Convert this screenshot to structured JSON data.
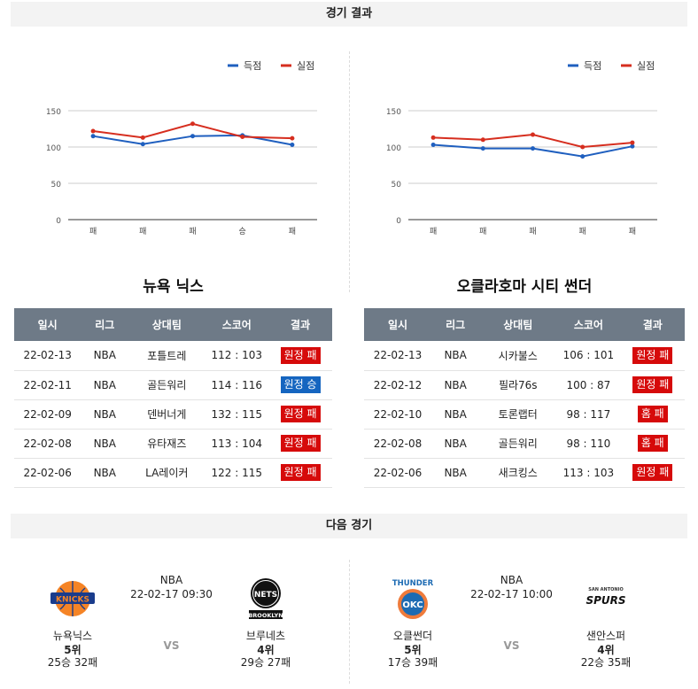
{
  "sections": {
    "results": "경기 결과",
    "next": "다음 경기"
  },
  "legend": {
    "scored": "득점",
    "conceded": "실점"
  },
  "colors": {
    "scored": "#1f5fbf",
    "conceded": "#d62e1f",
    "header_bg": "#6e7a87",
    "loss": "#d60a0a",
    "win": "#1565c0"
  },
  "chart_data": [
    {
      "type": "line",
      "categories": [
        "패",
        "패",
        "패",
        "승",
        "패"
      ],
      "series": [
        {
          "name": "득점",
          "values": [
            115,
            104,
            115,
            116,
            103
          ]
        },
        {
          "name": "실점",
          "values": [
            122,
            113,
            132,
            114,
            112
          ]
        }
      ],
      "ylim": [
        0,
        150
      ],
      "yticks": [
        0,
        50,
        100,
        150
      ],
      "grid": true,
      "legend": "top-right"
    },
    {
      "type": "line",
      "categories": [
        "패",
        "패",
        "패",
        "패",
        "패"
      ],
      "series": [
        {
          "name": "득점",
          "values": [
            103,
            98,
            98,
            87,
            101
          ]
        },
        {
          "name": "실점",
          "values": [
            113,
            110,
            117,
            100,
            106
          ]
        }
      ],
      "ylim": [
        0,
        150
      ],
      "yticks": [
        0,
        50,
        100,
        150
      ],
      "grid": true,
      "legend": "top-right"
    }
  ],
  "teams": {
    "left": {
      "title": "뉴욕 닉스",
      "headers": [
        "일시",
        "리그",
        "상대팀",
        "스코어",
        "결과"
      ],
      "games": [
        {
          "date": "22-02-13",
          "league": "NBA",
          "opponent": "포틀트레",
          "score": "112 : 103",
          "result": "원정 패",
          "win": false
        },
        {
          "date": "22-02-11",
          "league": "NBA",
          "opponent": "골든워리",
          "score": "114 : 116",
          "result": "원정 승",
          "win": true
        },
        {
          "date": "22-02-09",
          "league": "NBA",
          "opponent": "덴버너게",
          "score": "132 : 115",
          "result": "원정 패",
          "win": false
        },
        {
          "date": "22-02-08",
          "league": "NBA",
          "opponent": "유타재즈",
          "score": "113 : 104",
          "result": "원정 패",
          "win": false
        },
        {
          "date": "22-02-06",
          "league": "NBA",
          "opponent": "LA레이커",
          "score": "122 : 115",
          "result": "원정 패",
          "win": false
        }
      ]
    },
    "right": {
      "title": "오클라호마 시티 썬더",
      "headers": [
        "일시",
        "리그",
        "상대팀",
        "스코어",
        "결과"
      ],
      "games": [
        {
          "date": "22-02-13",
          "league": "NBA",
          "opponent": "시카불스",
          "score": "106 : 101",
          "result": "원정 패",
          "win": false
        },
        {
          "date": "22-02-12",
          "league": "NBA",
          "opponent": "필라76s",
          "score": "100 : 87",
          "result": "원정 패",
          "win": false
        },
        {
          "date": "22-02-10",
          "league": "NBA",
          "opponent": "토론랩터",
          "score": "98 : 117",
          "result": "홈 패",
          "win": false
        },
        {
          "date": "22-02-08",
          "league": "NBA",
          "opponent": "골든워리",
          "score": "98 : 110",
          "result": "홈 패",
          "win": false
        },
        {
          "date": "22-02-06",
          "league": "NBA",
          "opponent": "새크킹스",
          "score": "113 : 103",
          "result": "원정 패",
          "win": false
        }
      ]
    }
  },
  "next_games": [
    {
      "league": "NBA",
      "time": "22-02-17 09:30",
      "vs": "VS",
      "home": {
        "name": "뉴욕닉스",
        "rank": "5위",
        "record": "25승 32패",
        "logo": "knicks-logo",
        "logo_text": "KNICKS"
      },
      "away": {
        "name": "브루네츠",
        "rank": "4위",
        "record": "29승 27패",
        "logo": "nets-logo",
        "logo_text": "NETS",
        "logo_sub": "BROOKLYN"
      }
    },
    {
      "league": "NBA",
      "time": "22-02-17 10:00",
      "vs": "VS",
      "home": {
        "name": "오클썬더",
        "rank": "5위",
        "record": "17승 39패",
        "logo": "thunder-logo",
        "logo_text": "THUNDER",
        "logo_sub": "OKC"
      },
      "away": {
        "name": "샌안스퍼",
        "rank": "4위",
        "record": "22승 35패",
        "logo": "spurs-logo",
        "logo_text": "SPURS",
        "logo_sub": "SAN ANTONIO"
      }
    }
  ]
}
